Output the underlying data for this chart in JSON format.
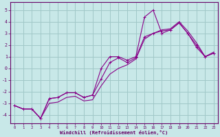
{
  "xlabel": "Windchill (Refroidissement éolien,°C)",
  "bg_color": "#c8e8e8",
  "grid_color": "#a0c8c8",
  "line_color": "#880088",
  "tick_color": "#660066",
  "spine_color": "#660066",
  "xlim": [
    -0.5,
    23.5
  ],
  "ylim": [
    -4.7,
    5.7
  ],
  "xticks": [
    0,
    1,
    2,
    3,
    4,
    5,
    6,
    7,
    8,
    9,
    10,
    11,
    12,
    13,
    14,
    15,
    16,
    17,
    18,
    19,
    20,
    21,
    22,
    23
  ],
  "yticks": [
    -4,
    -3,
    -2,
    -1,
    0,
    1,
    2,
    3,
    4,
    5
  ],
  "line1_x": [
    0,
    1,
    2,
    3,
    4,
    5,
    6,
    7,
    8,
    9,
    10,
    11,
    12,
    13,
    14,
    15,
    16,
    17,
    18,
    19,
    20,
    21,
    22,
    23
  ],
  "line1_y": [
    -3.2,
    -3.5,
    -3.5,
    -4.3,
    -2.6,
    -2.5,
    -2.1,
    -2.1,
    -2.5,
    -2.3,
    -0.9,
    0.5,
    0.9,
    0.5,
    0.9,
    2.7,
    3.0,
    3.2,
    3.3,
    3.9,
    3.0,
    2.0,
    1.0,
    1.3
  ],
  "line2_x": [
    0,
    1,
    2,
    3,
    4,
    5,
    6,
    7,
    8,
    9,
    10,
    11,
    12,
    13,
    14,
    15,
    16,
    17,
    18,
    19,
    20,
    21,
    22,
    23
  ],
  "line2_y": [
    -3.2,
    -3.5,
    -3.5,
    -4.3,
    -2.6,
    -2.5,
    -2.1,
    -2.1,
    -2.5,
    -2.3,
    0.0,
    1.0,
    1.0,
    0.7,
    1.0,
    4.4,
    5.0,
    3.0,
    3.3,
    3.9,
    3.0,
    1.8,
    1.0,
    1.3
  ],
  "line3_x": [
    0,
    1,
    2,
    3,
    4,
    5,
    6,
    7,
    8,
    9,
    10,
    11,
    12,
    13,
    14,
    15,
    16,
    17,
    18,
    19,
    20,
    21,
    22,
    23
  ],
  "line3_y": [
    -3.2,
    -3.5,
    -3.5,
    -4.3,
    -3.0,
    -2.9,
    -2.5,
    -2.4,
    -2.8,
    -2.7,
    -1.5,
    -0.5,
    0.0,
    0.3,
    0.8,
    2.5,
    3.0,
    3.3,
    3.4,
    4.0,
    3.2,
    2.2,
    1.0,
    1.4
  ]
}
